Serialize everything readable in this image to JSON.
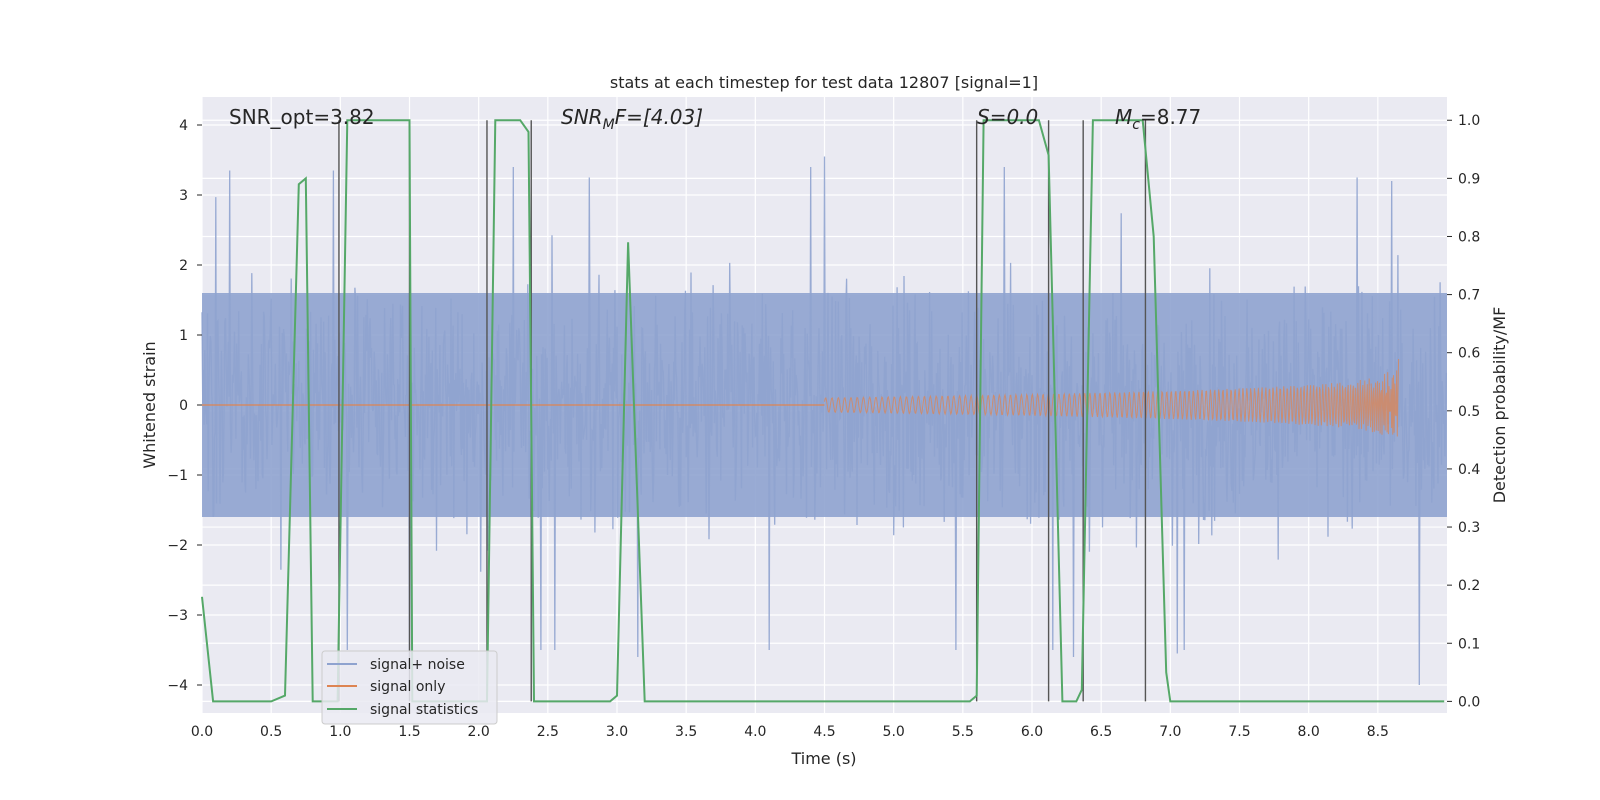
{
  "chart_data": {
    "type": "line",
    "title": "stats at each timestep for test data 12807 [signal=1]",
    "xlabel": "Time (s)",
    "ylabel_left": "Whitened strain",
    "ylabel_right": "Detection probability/MF",
    "xlim": [
      0.0,
      9.0
    ],
    "ylim_left": [
      -4.4,
      4.4
    ],
    "ylim_right": [
      -0.02,
      1.04
    ],
    "grid": true,
    "x_ticks": [
      "0.0",
      "0.5",
      "1.0",
      "1.5",
      "2.0",
      "2.5",
      "3.0",
      "3.5",
      "4.0",
      "4.5",
      "5.0",
      "5.5",
      "6.0",
      "6.5",
      "7.0",
      "7.5",
      "8.0",
      "8.5"
    ],
    "y_ticks_left": [
      "−4",
      "−3",
      "−2",
      "−1",
      "0",
      "1",
      "2",
      "3",
      "4"
    ],
    "y_ticks_right": [
      "0.0",
      "0.1",
      "0.2",
      "0.3",
      "0.4",
      "0.5",
      "0.6",
      "0.7",
      "0.8",
      "0.9",
      "1.0"
    ],
    "annotations": {
      "snr_opt": "SNR_opt=3.82",
      "snr_mf_prefix": "SNR",
      "snr_mf_sub": "M",
      "snr_mf_suffix": "F=[4.03]",
      "s_label": "S=0.0",
      "mc_prefix": "M",
      "mc_sub": "c",
      "mc_suffix": "=8.77"
    },
    "legend": {
      "placement": "lower-left",
      "entries": [
        "signal+ noise",
        "signal only",
        "signal statistics"
      ]
    },
    "colors": {
      "noise": "#8fa3cf",
      "signal": "#dd8452",
      "stats": "#55a868",
      "vlines": "#555555",
      "background": "#eaeaf2"
    },
    "noise_envelope": {
      "dense_band": [
        -1.6,
        1.6
      ],
      "typical_peak": [
        -3.0,
        3.0
      ],
      "extreme_peaks": [
        [
          0.1,
          2.97
        ],
        [
          0.2,
          3.35
        ],
        [
          0.95,
          3.35
        ],
        [
          2.25,
          3.4
        ],
        [
          2.8,
          3.25
        ],
        [
          4.4,
          3.4
        ],
        [
          4.5,
          3.55
        ],
        [
          5.8,
          3.4
        ],
        [
          8.35,
          3.25
        ],
        [
          8.6,
          3.2
        ],
        [
          1.05,
          -3.5
        ],
        [
          1.5,
          -3.6
        ],
        [
          2.45,
          -3.5
        ],
        [
          2.55,
          -3.5
        ],
        [
          3.15,
          -3.6
        ],
        [
          4.1,
          -3.5
        ],
        [
          5.45,
          -3.5
        ],
        [
          6.15,
          -3.5
        ],
        [
          6.3,
          -3.6
        ],
        [
          7.05,
          -3.55
        ],
        [
          7.1,
          -3.5
        ],
        [
          8.8,
          -4.0
        ]
      ]
    },
    "signal_chirp": {
      "start_time": 4.5,
      "merger_time": 8.65,
      "peak_amplitude": 0.7,
      "min_amplitude": -0.45
    },
    "detection_statistic": {
      "x": [
        0.0,
        0.08,
        0.15,
        0.5,
        0.6,
        0.7,
        0.75,
        0.8,
        0.88,
        0.98,
        1.05,
        1.5,
        1.52,
        1.6,
        2.0,
        2.06,
        2.12,
        2.3,
        2.36,
        2.4,
        2.46,
        2.95,
        3.0,
        3.08,
        3.2,
        5.55,
        5.6,
        5.65,
        6.05,
        6.12,
        6.22,
        6.32,
        6.36,
        6.44,
        6.8,
        6.88,
        6.97,
        7.0,
        8.98
      ],
      "y": [
        0.18,
        0.0,
        0.0,
        0.0,
        0.01,
        0.89,
        0.9,
        0.0,
        0.0,
        0.0,
        1.0,
        1.0,
        0.0,
        0.0,
        0.0,
        0.0,
        1.0,
        1.0,
        0.98,
        0.0,
        0.0,
        0.0,
        0.01,
        0.79,
        0.0,
        0.0,
        0.01,
        1.0,
        1.0,
        0.94,
        0.0,
        0.0,
        0.02,
        1.0,
        1.0,
        0.8,
        0.05,
        0.0,
        0.0
      ]
    },
    "vertical_lines": [
      0.99,
      1.5,
      2.06,
      2.38,
      5.6,
      6.12,
      6.37,
      6.82
    ]
  }
}
